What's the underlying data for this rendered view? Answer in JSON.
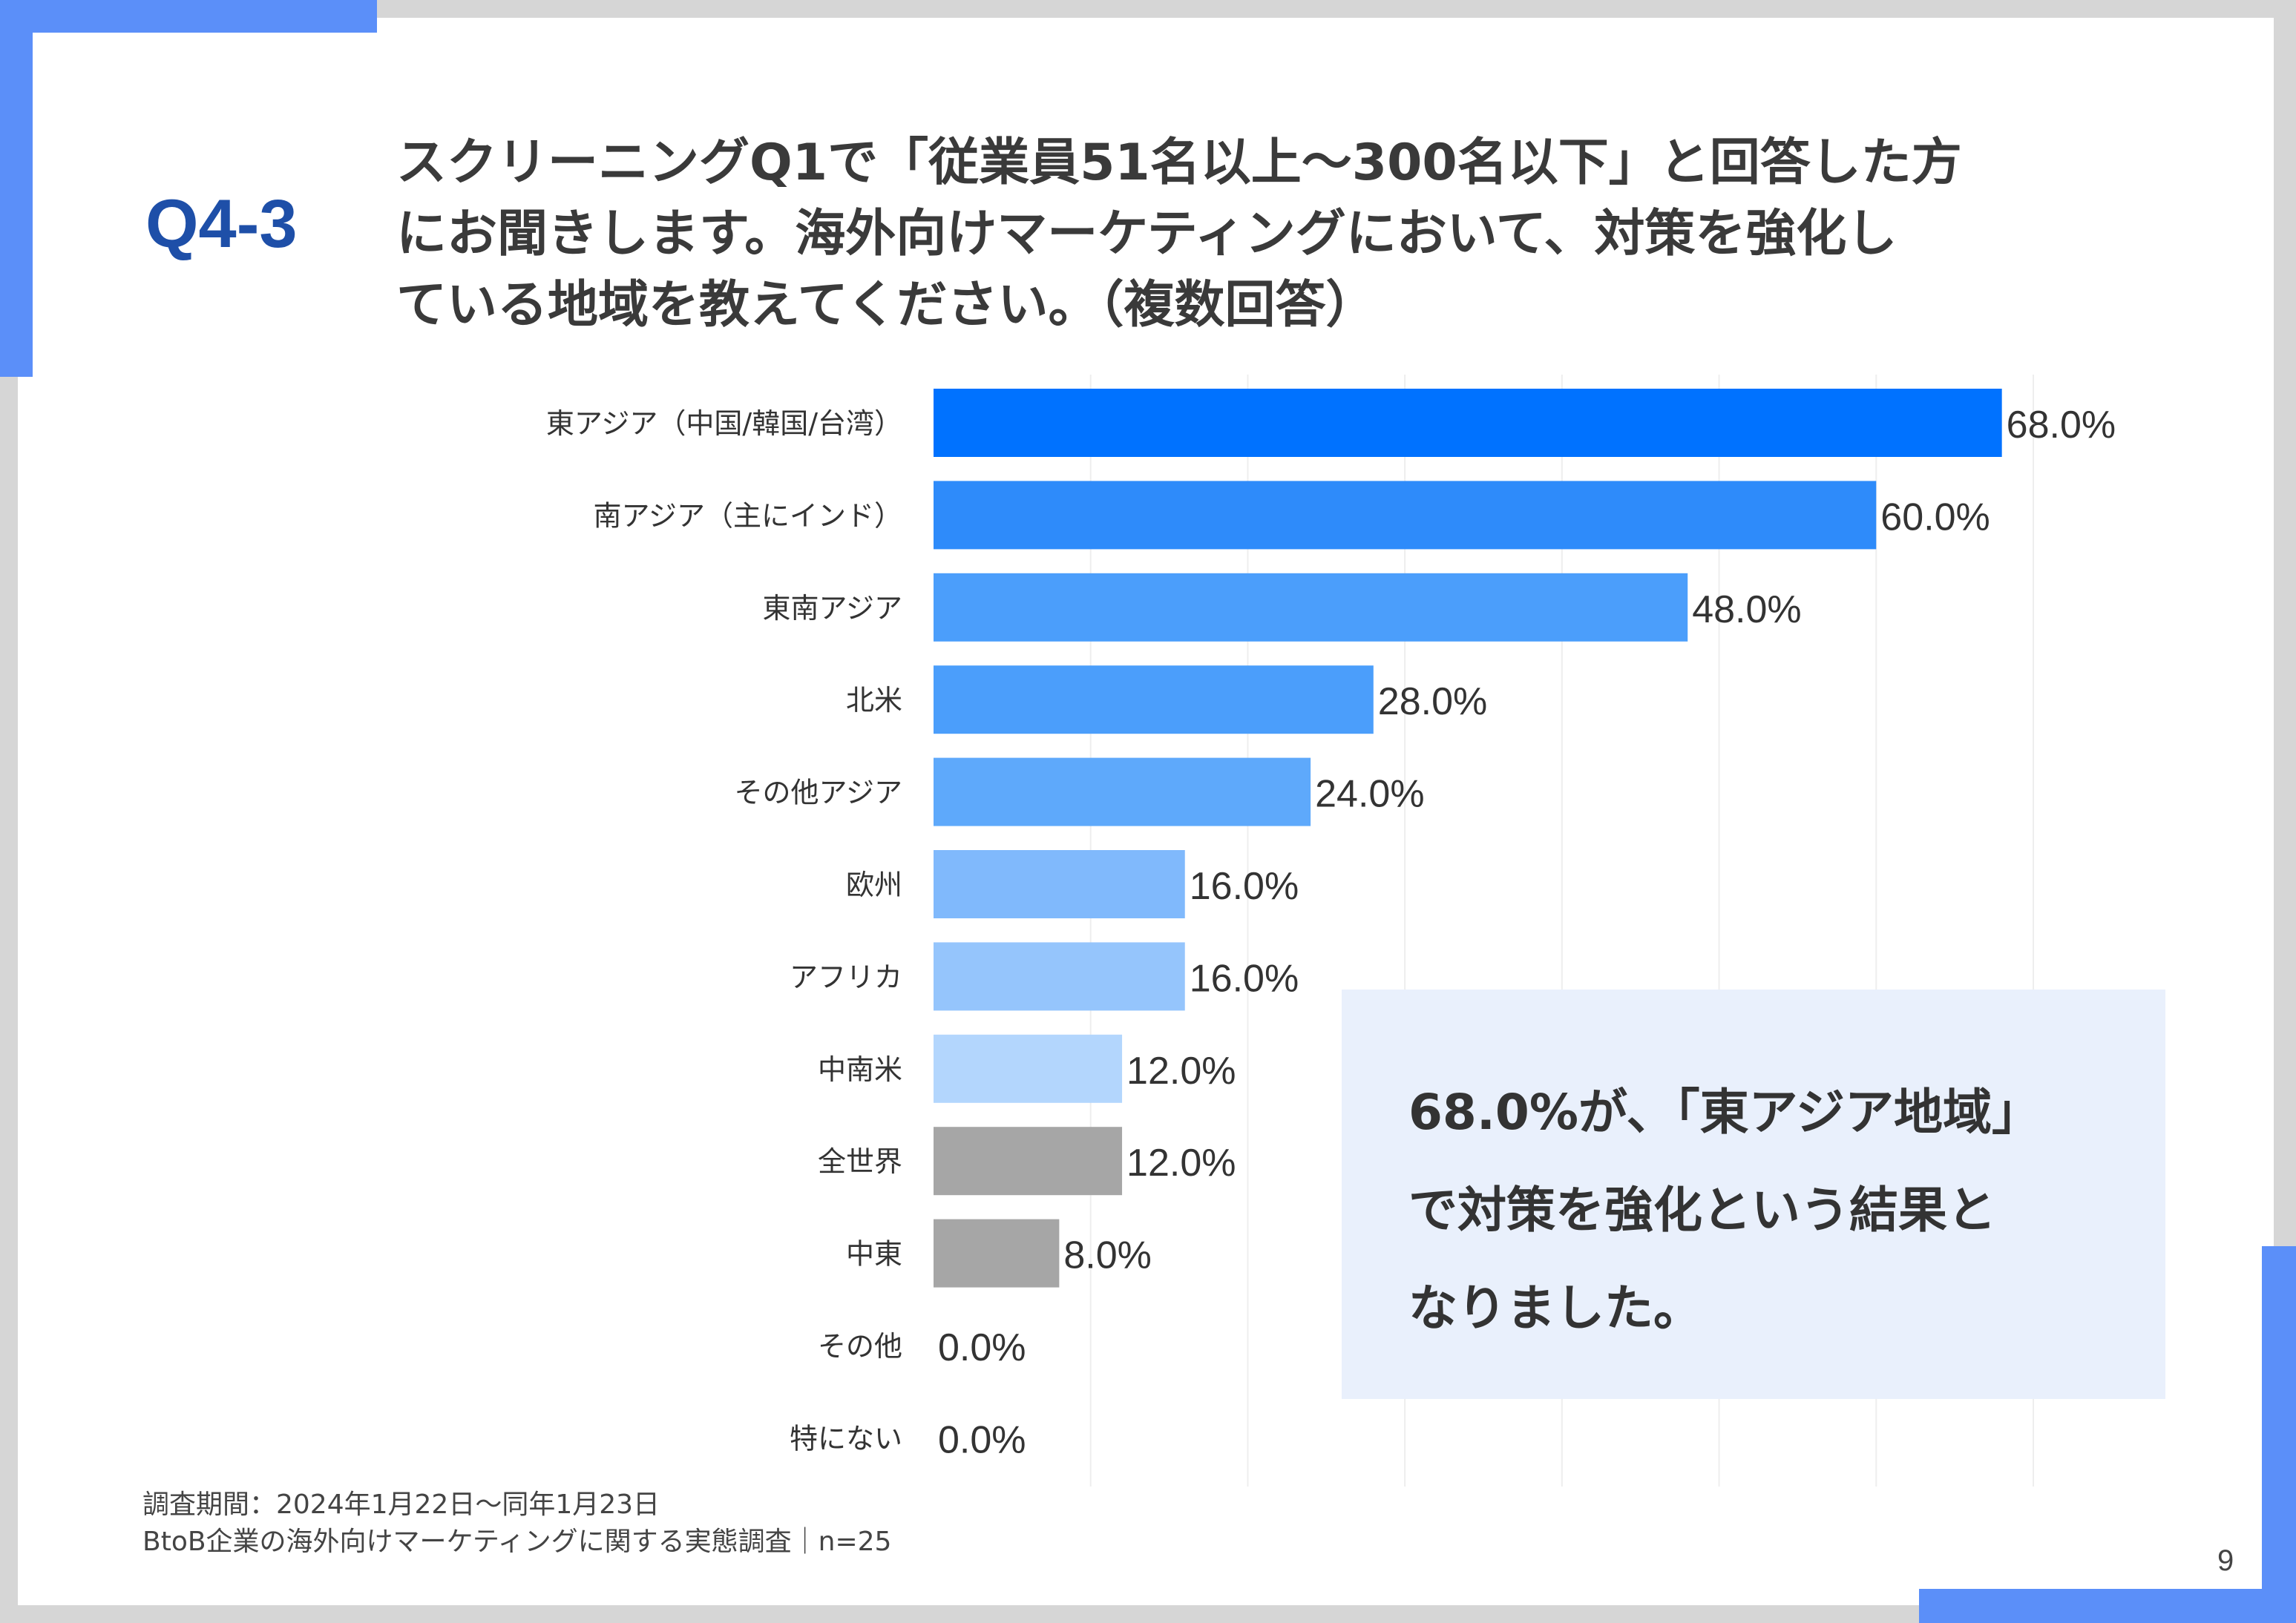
{
  "header": {
    "question_number": "Q4-3",
    "question_lines": [
      "スクリーニングQ1で「従業員51名以上～300名以下」と回答した方",
      "にお聞きします。海外向けマーケティングにおいて、対策を強化し",
      "ている地域を教えてください。（複数回答）"
    ]
  },
  "chart_data": {
    "type": "bar",
    "orientation": "horizontal",
    "categories": [
      "東アジア（中国/韓国/台湾）",
      "南アジア（主にインド）",
      "東南アジア",
      "北米",
      "その他アジア",
      "欧州",
      "アフリカ",
      "中南米",
      "全世界",
      "中東",
      "その他",
      "特にない"
    ],
    "values": [
      68.0,
      60.0,
      48.0,
      28.0,
      24.0,
      16.0,
      16.0,
      12.0,
      12.0,
      8.0,
      0.0,
      0.0
    ],
    "value_labels": [
      "68.0%",
      "60.0%",
      "48.0%",
      "28.0%",
      "24.0%",
      "16.0%",
      "16.0%",
      "12.0%",
      "12.0%",
      "8.0%",
      "0.0%",
      "0.0%"
    ],
    "bar_colors": [
      "#0072ff",
      "#2e8bfa",
      "#4b9efb",
      "#4b9efb",
      "#5ea9fb",
      "#80b9fc",
      "#95c5fc",
      "#b3d6fd",
      "#a6a6a6",
      "#a6a6a6",
      "#a6a6a6",
      "#a6a6a6"
    ],
    "xlim": [
      0,
      70
    ],
    "grid": true
  },
  "callout": {
    "lines": [
      "68.0%が、「東アジア地域」",
      "で対策を強化という結果と",
      "なりました。"
    ]
  },
  "footer": {
    "survey_period": "調査期間：2024年1月22日～同年1月23日",
    "survey_name": "BtoB企業の海外向けマーケティングに関する実態調査｜n=25"
  },
  "page_number": "9",
  "colors": {
    "accent": "#5b8ff9",
    "question_number": "#1e4fa8",
    "callout_background": "#e9f0fc"
  }
}
